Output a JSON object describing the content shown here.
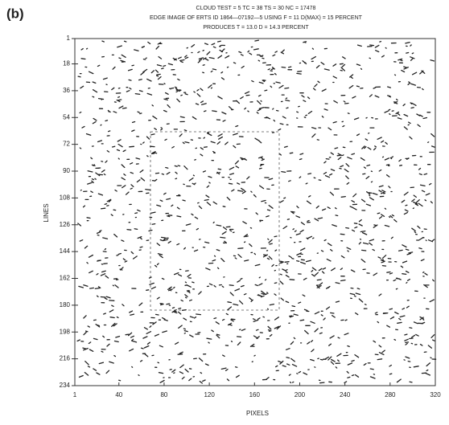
{
  "chart_data": {
    "type": "image",
    "panel_label": "(b)",
    "title": [
      "CLOUD TEST = 5    TC = 38    TS = 30    NC = 17478",
      "EDGE IMAGE OF ERTS ID 1864—07192—5 USING F = 11 D(MAX) = 15 PERCENT",
      "PRODUCES T = 13.0  D = 14.3 PERCENT"
    ],
    "xlabel": "PIXELS",
    "ylabel": "LINES",
    "xlim": [
      1,
      320
    ],
    "xticks": [
      1,
      40,
      80,
      120,
      160,
      200,
      240,
      280,
      320
    ],
    "ylim": [
      234,
      1
    ],
    "yticks": [
      1,
      18,
      36,
      54,
      72,
      90,
      108,
      126,
      144,
      162,
      180,
      198,
      216,
      234
    ]
  }
}
